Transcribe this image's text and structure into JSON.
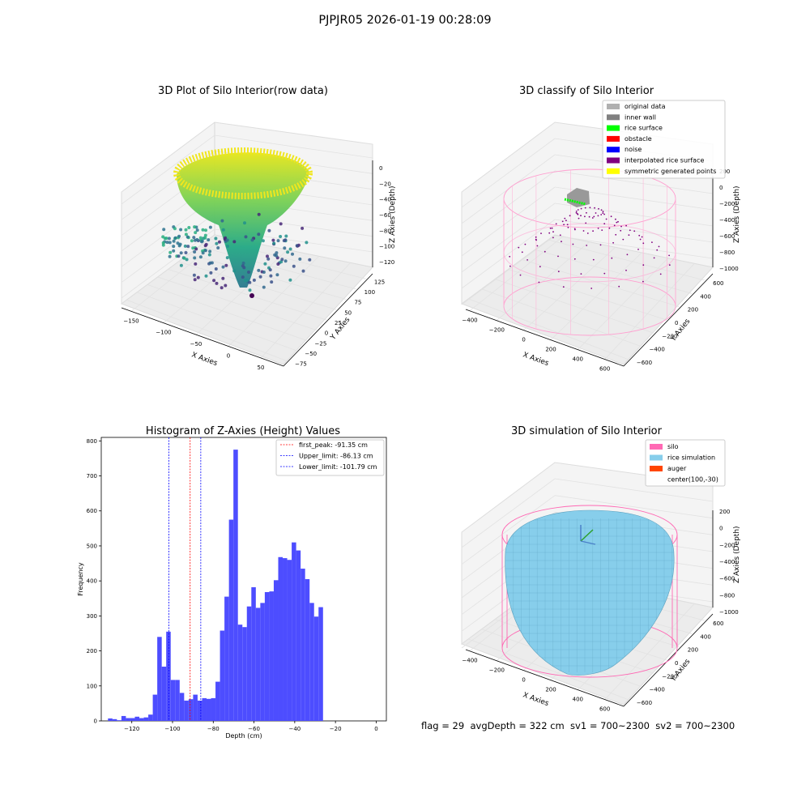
{
  "figure": {
    "suptitle": "PJPJR05 2026-01-19 00:28:09",
    "status_line": "flag = 29  avgDepth = 322 cm  sv1 = 700~2300  sv2 = 700~2300"
  },
  "panels": {
    "raw": {
      "title": "3D Plot of Silo Interior(row data)",
      "xlabel": "X Axies",
      "ylabel": "Y Axies",
      "zlabel": "Z Axies (Depth)",
      "xticks": [
        "−150",
        "−100",
        "−50",
        "0",
        "50"
      ],
      "yticks": [
        "−75",
        "−50",
        "−25",
        "0",
        "25",
        "50",
        "75",
        "100",
        "125"
      ],
      "zticks": [
        "0",
        "−20",
        "−40",
        "−60",
        "−80",
        "−100",
        "−120"
      ]
    },
    "classify": {
      "title": "3D classify of Silo Interior",
      "xlabel": "X Axies",
      "ylabel": "Y Axies",
      "zlabel": "Z Axies (Depth)",
      "xticks": [
        "−400",
        "−200",
        "0",
        "200",
        "400",
        "600"
      ],
      "yticks": [
        "−600",
        "−400",
        "−200",
        "0",
        "200",
        "400",
        "600"
      ],
      "zticks": [
        "200",
        "0",
        "−200",
        "−400",
        "−600",
        "−800",
        "−1000"
      ],
      "legend": [
        {
          "label": "original data",
          "color": "#b0b0b0"
        },
        {
          "label": "inner wall",
          "color": "#808080"
        },
        {
          "label": "rice surface",
          "color": "#00ff00"
        },
        {
          "label": "obstacle",
          "color": "#ff0000"
        },
        {
          "label": "noise",
          "color": "#0000ff"
        },
        {
          "label": "interpolated rice surface",
          "color": "#800080"
        },
        {
          "label": "symmetric generated points",
          "color": "#ffff00"
        }
      ]
    },
    "simulation": {
      "title": "3D simulation of Silo Interior",
      "xlabel": "X Axies",
      "ylabel": "Y Axies",
      "zlabel": "Z Axies (Depth)",
      "xticks": [
        "−400",
        "−200",
        "0",
        "200",
        "400",
        "600"
      ],
      "yticks": [
        "−600",
        "−400",
        "−200",
        "0",
        "200",
        "400",
        "600"
      ],
      "zticks": [
        "200",
        "0",
        "−200",
        "−400",
        "−600",
        "−800",
        "−1000"
      ],
      "legend": [
        {
          "label": "silo",
          "color": "#ff69b4"
        },
        {
          "label": "rice simulation",
          "color": "#87ceeb"
        },
        {
          "label": "auger",
          "color": "#ff4500"
        },
        {
          "label": "center(100,-30)",
          "color": ""
        }
      ]
    }
  },
  "chart_data": {
    "type": "bar",
    "title": "Histogram of Z-Axies (Height) Values",
    "xlabel": "Depth (cm)",
    "ylabel": "Frequency",
    "xlim": [
      -135,
      5
    ],
    "ylim": [
      0,
      810
    ],
    "xticks": [
      -120,
      -100,
      -80,
      -60,
      -40,
      -20,
      0
    ],
    "xtick_labels": [
      "−120",
      "−100",
      "−80",
      "−60",
      "−40",
      "−20",
      "0"
    ],
    "yticks": [
      0,
      100,
      200,
      300,
      400,
      500,
      600,
      700,
      800
    ],
    "bar_color": "#4d4dff",
    "bin_start": -131.7,
    "bin_width": 2.2,
    "values": [
      7,
      5,
      2,
      14,
      8,
      8,
      12,
      8,
      10,
      18,
      75,
      240,
      155,
      255,
      117,
      117,
      80,
      58,
      62,
      75,
      58,
      65,
      63,
      65,
      112,
      258,
      355,
      575,
      775,
      275,
      268,
      327,
      382,
      323,
      337,
      368,
      370,
      402,
      468,
      465,
      460,
      510,
      487,
      435,
      405,
      337,
      298,
      325
    ],
    "vlines": [
      {
        "name": "first_peak: -91.35 cm",
        "x": -91.35,
        "color": "#ff0000"
      },
      {
        "name": "Upper_limit: -86.13 cm",
        "x": -86.13,
        "color": "#0000ff"
      },
      {
        "name": "Lower_limit: -101.79 cm",
        "x": -101.79,
        "color": "#0000ff"
      }
    ],
    "legend_position": "upper right"
  }
}
